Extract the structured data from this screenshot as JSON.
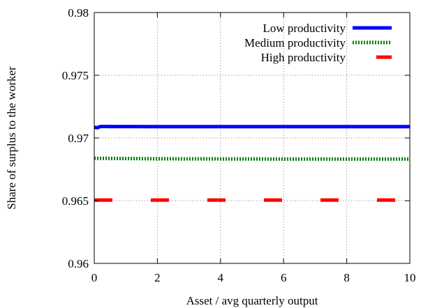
{
  "chart_data": {
    "type": "line",
    "title": "",
    "xlabel": "Asset / avg quarterly output",
    "ylabel": "Share of surplus to the worker",
    "xlim": [
      0,
      10
    ],
    "ylim": [
      0.96,
      0.98
    ],
    "xticks": [
      0,
      2,
      4,
      6,
      8,
      10
    ],
    "yticks": [
      0.96,
      0.965,
      0.97,
      0.975,
      0.98
    ],
    "xtick_labels": [
      "0",
      "2",
      "4",
      "6",
      "8",
      "10"
    ],
    "ytick_labels": [
      "0.96",
      "0.965",
      "0.97",
      "0.975",
      "0.98"
    ],
    "grid": true,
    "grid_style": "dotted",
    "legend_position": "top-right",
    "series": [
      {
        "name": "Low productivity",
        "color": "#0000ff",
        "style": "solid",
        "x": [
          0,
          0.1,
          0.2,
          0.3,
          0.5,
          1,
          2,
          4,
          6,
          8,
          10
        ],
        "y": [
          0.97085,
          0.97082,
          0.97092,
          0.97092,
          0.97091,
          0.97091,
          0.9709,
          0.9709,
          0.9709,
          0.9709,
          0.9709
        ]
      },
      {
        "name": "Medium productivity",
        "color": "#008000",
        "style": "dotted",
        "x": [
          0,
          2,
          4,
          6,
          8,
          10
        ],
        "y": [
          0.96838,
          0.96834,
          0.96833,
          0.96832,
          0.96832,
          0.96832
        ]
      },
      {
        "name": "High productivity",
        "color": "#ff0000",
        "style": "dashed",
        "x": [
          0,
          2,
          4,
          6,
          8,
          10
        ],
        "y": [
          0.96505,
          0.96505,
          0.96505,
          0.96505,
          0.96505,
          0.96505
        ]
      }
    ]
  }
}
